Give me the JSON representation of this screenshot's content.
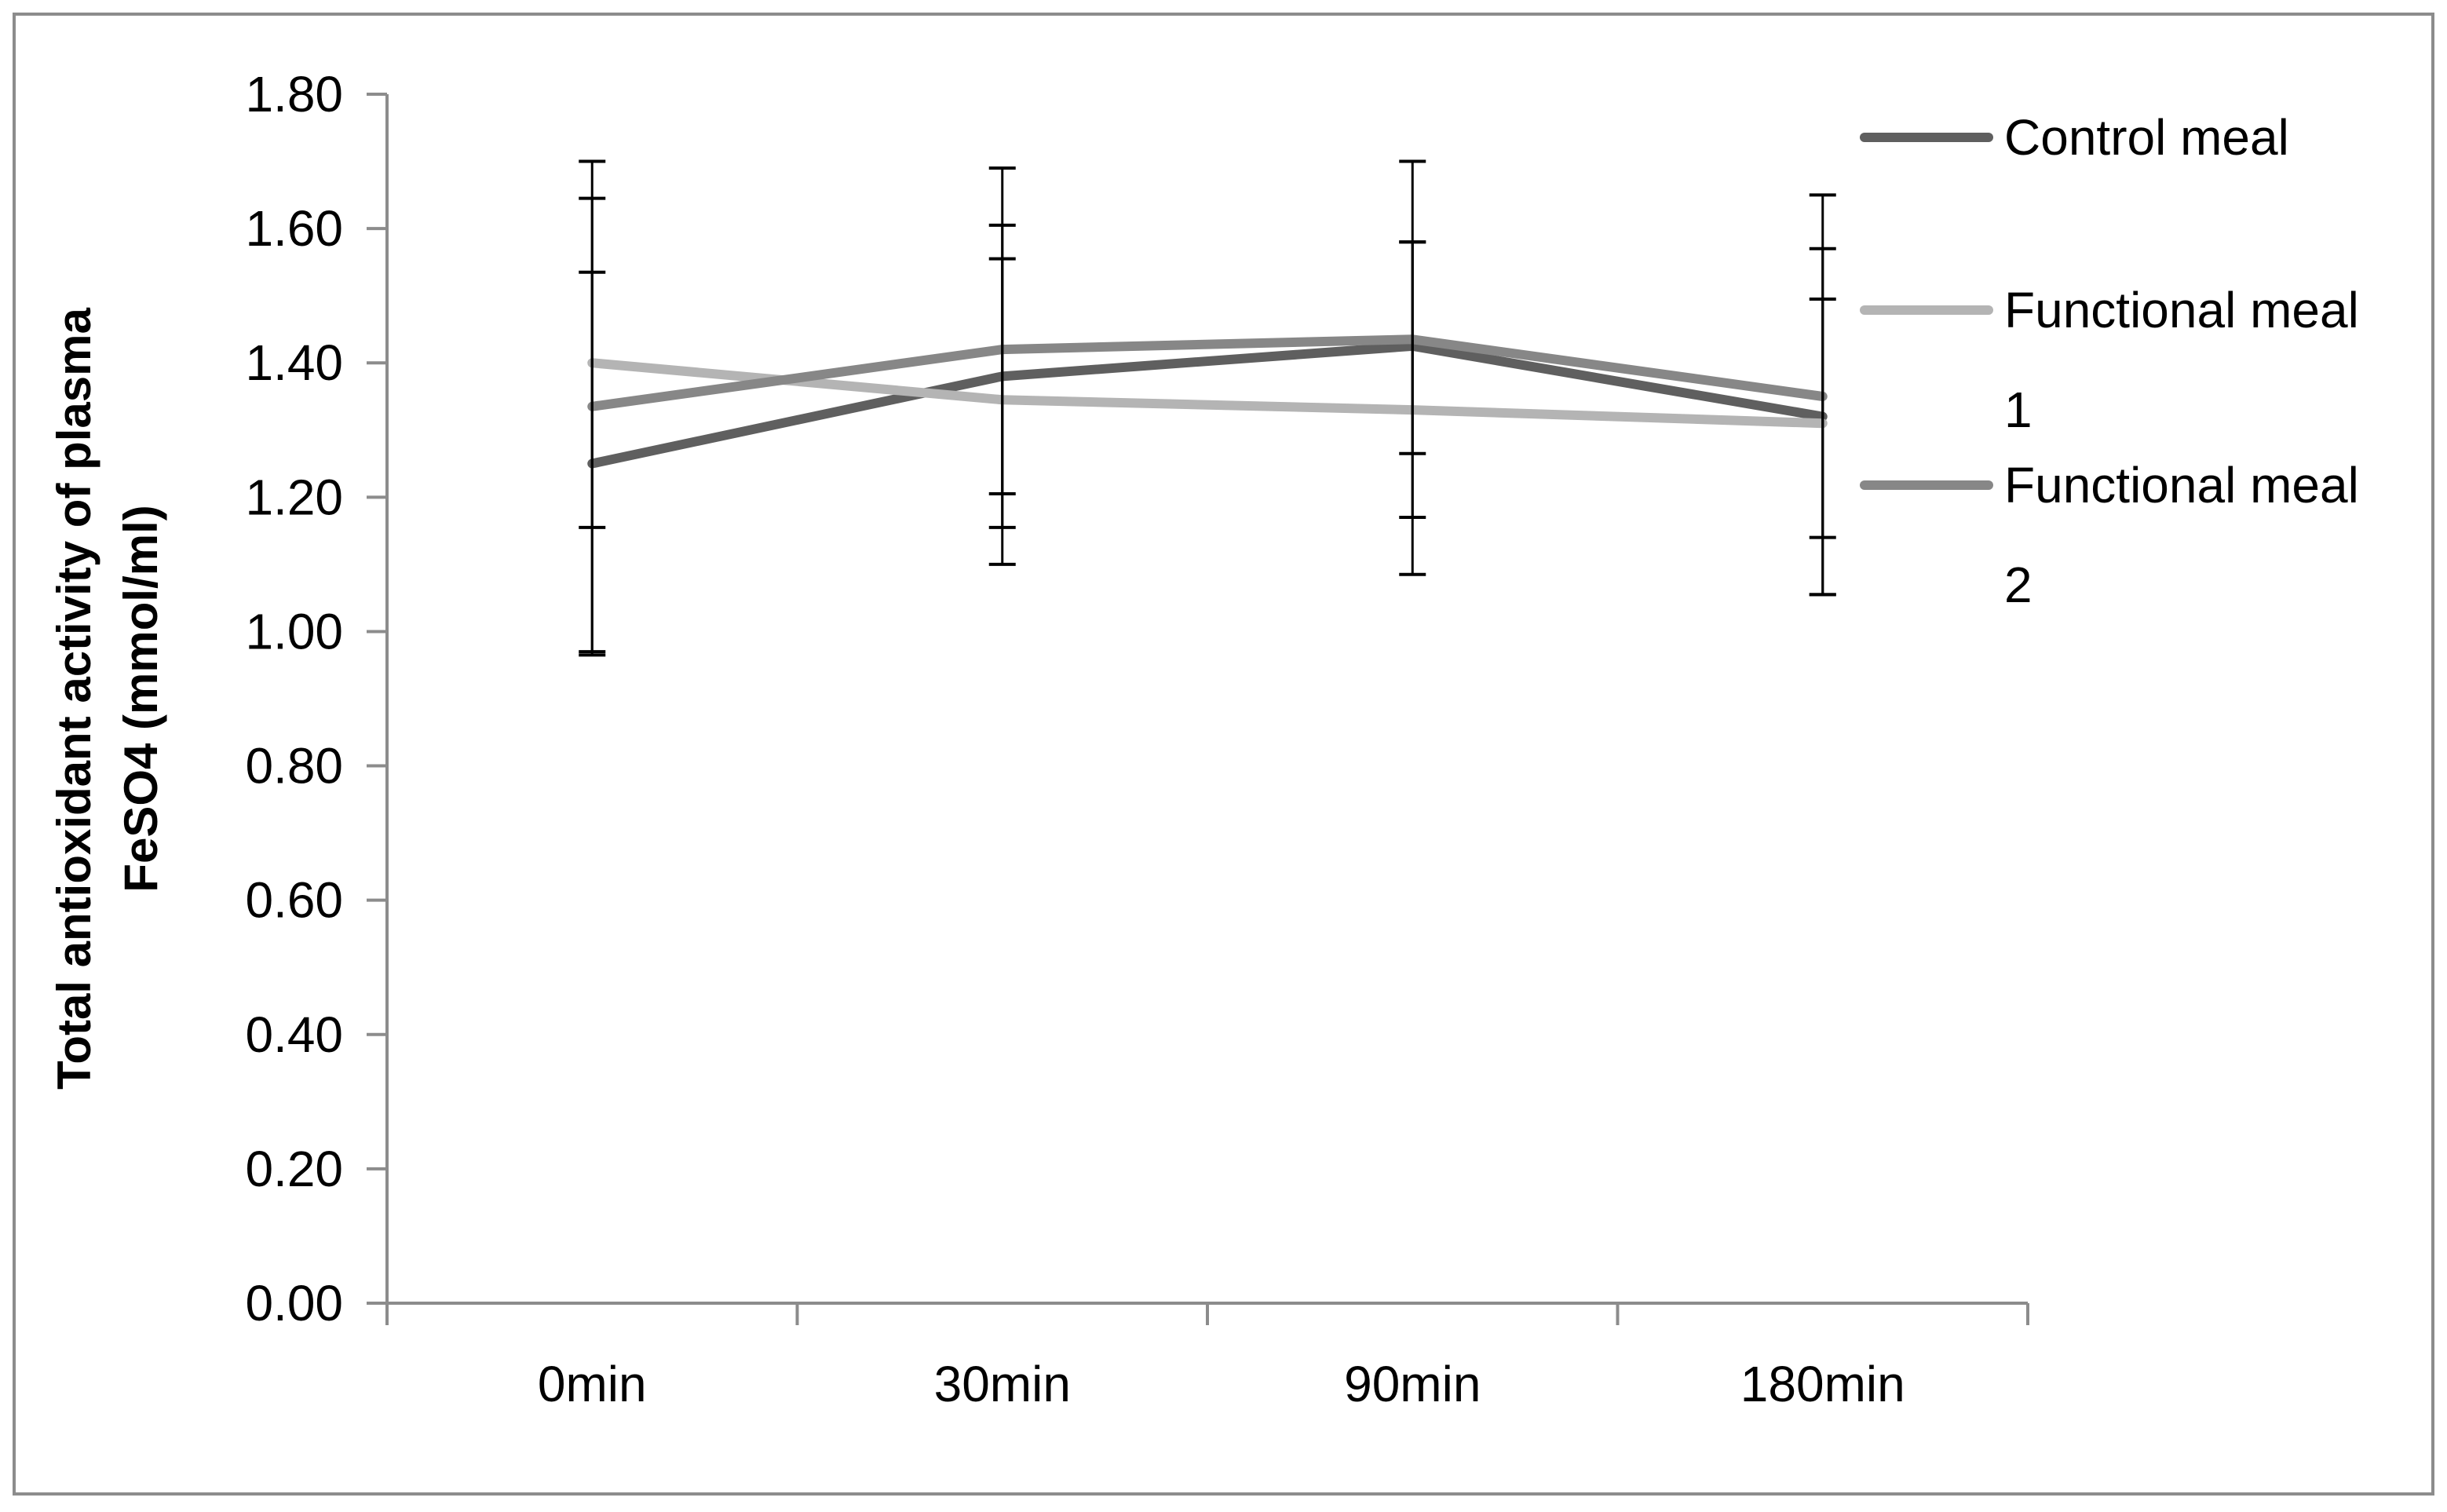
{
  "chart_data": {
    "type": "line",
    "title": "",
    "xlabel": "",
    "ylabel_lines": [
      "Total antioxidant activity of plasma",
      "FeSO4 (mmol/ml)"
    ],
    "categories": [
      "0min",
      "30min",
      "90min",
      "180min"
    ],
    "ylim": [
      0,
      1.8
    ],
    "ytick_step": 0.2,
    "ytick_labels": [
      "0.00",
      "0.20",
      "0.40",
      "0.60",
      "0.80",
      "1.00",
      "1.20",
      "1.40",
      "1.60",
      "1.80"
    ],
    "grid": false,
    "legend_position": "top-right",
    "series": [
      {
        "name": "Control meal",
        "legend_lines": [
          "Control meal"
        ],
        "color": "#5f5f5f",
        "values": [
          1.25,
          1.38,
          1.425,
          1.32
        ],
        "error_low": [
          0.965,
          1.155,
          1.17,
          1.055
        ],
        "error_high": [
          1.535,
          1.605,
          1.7,
          1.57
        ]
      },
      {
        "name": "Functional meal 1",
        "legend_lines": [
          "Functional meal",
          "1"
        ],
        "color": "#b4b4b4",
        "values": [
          1.4,
          1.345,
          1.33,
          1.31
        ],
        "error_low": [
          1.155,
          1.1,
          1.085,
          1.14
        ],
        "error_high": [
          1.645,
          1.69,
          1.58,
          1.495
        ]
      },
      {
        "name": "Functional meal 2",
        "legend_lines": [
          "Functional meal",
          "2"
        ],
        "color": "#878787",
        "values": [
          1.335,
          1.42,
          1.435,
          1.35
        ],
        "error_low": [
          0.97,
          1.205,
          1.265,
          1.055
        ],
        "error_high": [
          1.7,
          1.555,
          1.58,
          1.65
        ]
      }
    ]
  }
}
